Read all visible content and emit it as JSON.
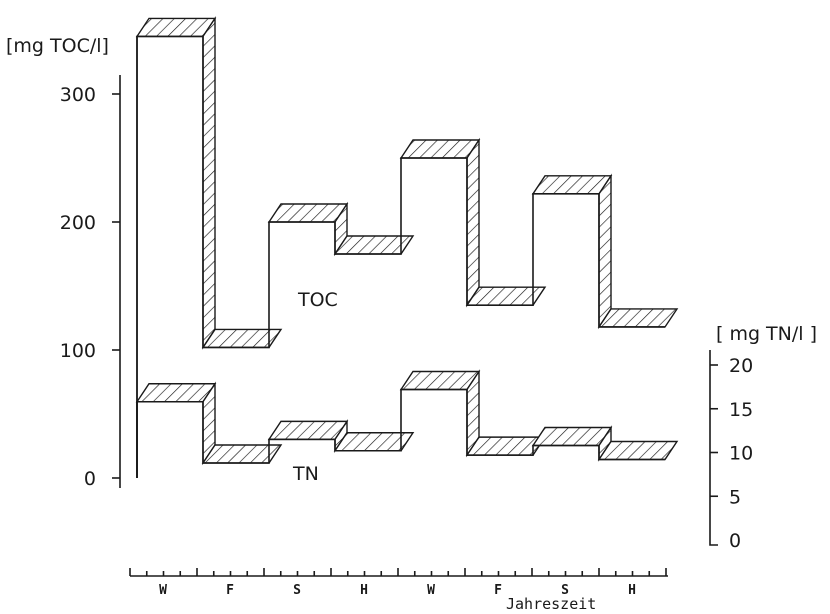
{
  "chart_data": {
    "type": "line",
    "style": "3D step bands with diagonal hatching",
    "xlabel": "Jahreszeit",
    "categories": [
      "W",
      "F",
      "S",
      "H",
      "W",
      "F",
      "S",
      "H"
    ],
    "left_axis": {
      "unit": "[mg TOC/l]",
      "ticks": [
        "0",
        "100",
        "200",
        "300"
      ],
      "ylim": [
        0,
        345
      ]
    },
    "right_axis": {
      "unit": "[ mg TN/l ]",
      "ticks": [
        "0",
        "5",
        "10",
        "15",
        "20"
      ],
      "ylim": [
        0,
        22.5
      ]
    },
    "series": [
      {
        "name": "TOC",
        "axis": "left",
        "values": [
          345,
          102,
          200,
          175,
          250,
          135,
          222,
          118
        ]
      },
      {
        "name": "TN",
        "axis": "right",
        "values": [
          15.8,
          8.8,
          11.5,
          10.2,
          17.2,
          9.7,
          10.8,
          9.2
        ]
      }
    ],
    "grid": false,
    "legend": "none"
  }
}
